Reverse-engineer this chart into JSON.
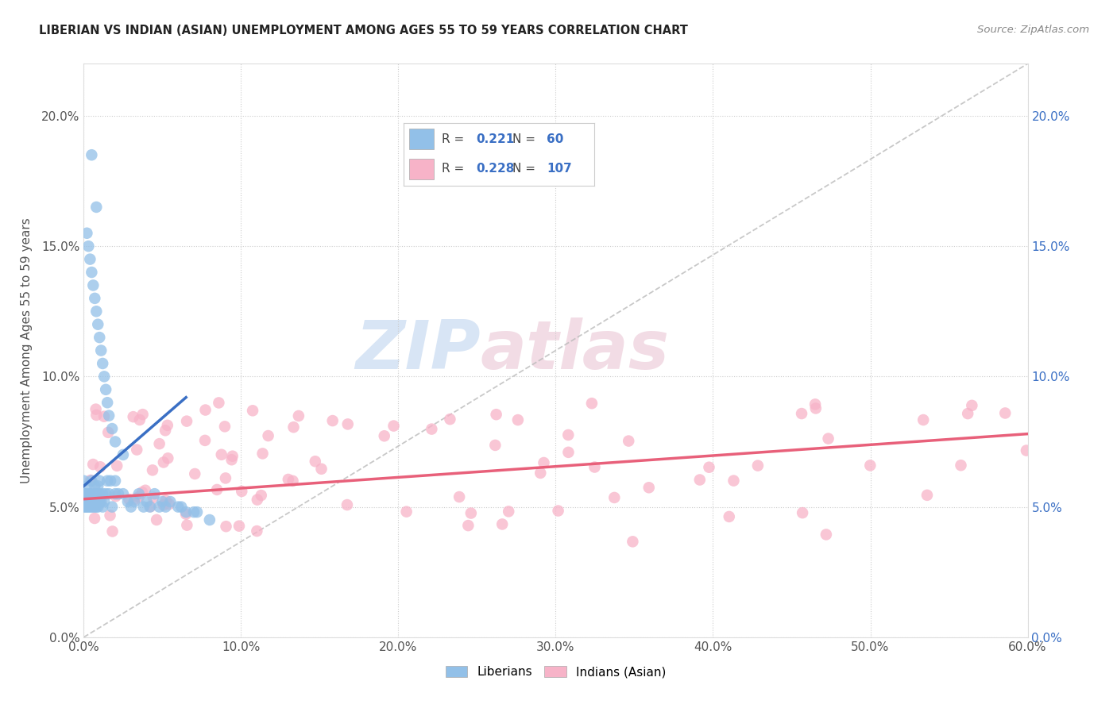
{
  "title": "LIBERIAN VS INDIAN (ASIAN) UNEMPLOYMENT AMONG AGES 55 TO 59 YEARS CORRELATION CHART",
  "source": "Source: ZipAtlas.com",
  "ylabel": "Unemployment Among Ages 55 to 59 years",
  "xlim": [
    0.0,
    0.6
  ],
  "ylim": [
    0.0,
    0.22
  ],
  "xticks": [
    0.0,
    0.1,
    0.2,
    0.3,
    0.4,
    0.5,
    0.6
  ],
  "yticks": [
    0.0,
    0.05,
    0.1,
    0.15,
    0.2
  ],
  "watermark_zip": "ZIP",
  "watermark_atlas": "atlas",
  "liberian_R": 0.221,
  "liberian_N": 60,
  "indian_R": 0.228,
  "indian_N": 107,
  "liberian_color": "#92c0e8",
  "indian_color": "#f7b3c8",
  "liberian_line_color": "#3a6fc4",
  "indian_line_color": "#e8607a",
  "diagonal_color": "#bbbbbb",
  "background_color": "#ffffff",
  "lib_x": [
    0.0,
    0.0,
    0.0,
    0.001,
    0.001,
    0.002,
    0.002,
    0.002,
    0.003,
    0.003,
    0.003,
    0.004,
    0.004,
    0.004,
    0.005,
    0.005,
    0.005,
    0.006,
    0.006,
    0.007,
    0.007,
    0.007,
    0.008,
    0.008,
    0.009,
    0.009,
    0.01,
    0.01,
    0.01,
    0.011,
    0.012,
    0.012,
    0.013,
    0.014,
    0.015,
    0.016,
    0.017,
    0.018,
    0.02,
    0.02,
    0.022,
    0.025,
    0.028,
    0.03,
    0.032,
    0.035,
    0.038,
    0.04,
    0.042,
    0.045,
    0.048,
    0.05,
    0.052,
    0.055,
    0.06,
    0.062,
    0.065,
    0.07,
    0.072,
    0.08
  ],
  "lib_y": [
    0.05,
    0.055,
    0.06,
    0.05,
    0.055,
    0.05,
    0.052,
    0.058,
    0.05,
    0.052,
    0.055,
    0.05,
    0.052,
    0.055,
    0.05,
    0.052,
    0.06,
    0.05,
    0.055,
    0.05,
    0.052,
    0.058,
    0.05,
    0.055,
    0.05,
    0.058,
    0.052,
    0.055,
    0.06,
    0.052,
    0.05,
    0.055,
    0.052,
    0.055,
    0.06,
    0.055,
    0.06,
    0.05,
    0.055,
    0.06,
    0.055,
    0.055,
    0.052,
    0.05,
    0.052,
    0.055,
    0.05,
    0.052,
    0.05,
    0.055,
    0.05,
    0.052,
    0.05,
    0.052,
    0.05,
    0.05,
    0.048,
    0.048,
    0.048,
    0.045
  ],
  "lib_outlier_x": [
    0.005,
    0.008,
    0.002,
    0.003,
    0.004,
    0.005,
    0.006,
    0.007,
    0.008,
    0.009,
    0.01,
    0.011,
    0.012,
    0.013,
    0.014,
    0.015,
    0.016,
    0.018,
    0.02,
    0.025
  ],
  "lib_outlier_y": [
    0.185,
    0.165,
    0.155,
    0.15,
    0.145,
    0.14,
    0.135,
    0.13,
    0.125,
    0.12,
    0.115,
    0.11,
    0.105,
    0.1,
    0.095,
    0.09,
    0.085,
    0.08,
    0.075,
    0.07
  ],
  "lib_trend_x": [
    0.0,
    0.065
  ],
  "lib_trend_y": [
    0.058,
    0.092
  ],
  "ind_trend_x": [
    0.0,
    0.6
  ],
  "ind_trend_y": [
    0.053,
    0.078
  ]
}
